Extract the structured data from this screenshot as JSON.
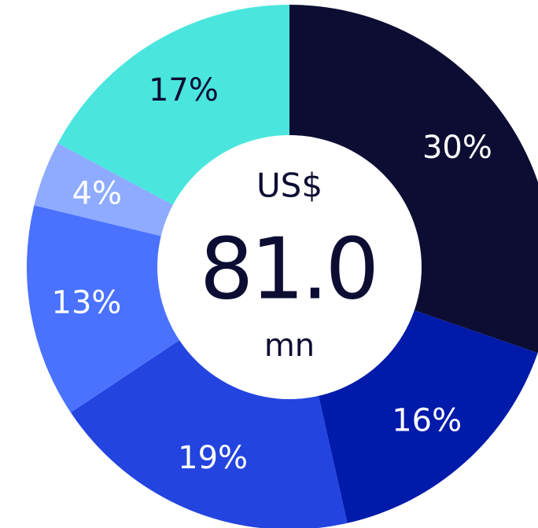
{
  "chart_data": {
    "type": "pie",
    "donut": true,
    "start_angle_deg": 0,
    "direction": "clockwise",
    "slices": [
      {
        "value": 30,
        "label": "30%",
        "color": "#0d0d33",
        "label_color": "#ffffff"
      },
      {
        "value": 16,
        "label": "16%",
        "color": "#001aaa",
        "label_color": "#ffffff"
      },
      {
        "value": 19,
        "label": "19%",
        "color": "#2344de",
        "label_color": "#ffffff"
      },
      {
        "value": 13,
        "label": "13%",
        "color": "#4a72ff",
        "label_color": "#ffffff"
      },
      {
        "value": 4,
        "label": "4%",
        "color": "#8eabff",
        "label_color": "#ffffff"
      },
      {
        "value": 17,
        "label": "17%",
        "color": "#4ae6de",
        "label_color": "#0d0d33"
      }
    ],
    "center": {
      "currency": "US$",
      "value": "81.0",
      "unit": "mn"
    }
  }
}
